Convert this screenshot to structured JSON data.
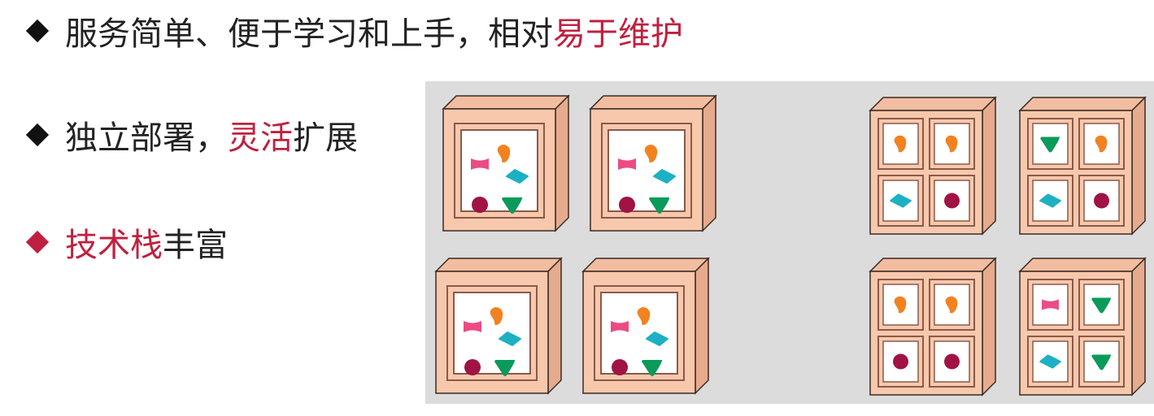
{
  "bullets": [
    {
      "normal": "服务简单、便于学习和上手，相对",
      "highlight": "易于维护",
      "after": "",
      "marker_color": "#111111"
    },
    {
      "normal": "独立部署，",
      "highlight": "灵活",
      "after": "扩展",
      "marker_color": "#111111"
    },
    {
      "normal": "",
      "highlight": "技术栈",
      "after": "丰富",
      "marker_color": "#c0203f"
    }
  ],
  "colors": {
    "highlight": "#c0203f",
    "diagram_background": "#dcdcdc",
    "box_face": "#f8c8ad",
    "box_side": "#e6ab8d",
    "box_top": "#f2bda0",
    "box_outline": "#3a2a22",
    "window": "#ffffff",
    "shape_pink": "#ec4b85",
    "shape_orange": "#f2821f",
    "shape_teal": "#1db0c3",
    "shape_maroon": "#a01344",
    "shape_green": "#0a9a5a"
  },
  "diagram": {
    "left_group": {
      "box_count": 4,
      "style": "single-window",
      "shapes_per_box": [
        "pink-bow",
        "orange-drop",
        "teal-diamond",
        "maroon-circle",
        "green-triangle"
      ]
    },
    "right_group": {
      "box_count": 4,
      "style": "quad-window",
      "boxes": [
        [
          "orange-drop",
          "orange-drop",
          "teal-diamond",
          "maroon-circle"
        ],
        [
          "green-triangle",
          "orange-drop",
          "teal-diamond",
          "maroon-circle"
        ],
        [
          "orange-drop",
          "orange-drop",
          "maroon-circle",
          "maroon-circle"
        ],
        [
          "pink-bow",
          "green-triangle",
          "teal-diamond",
          "green-triangle"
        ]
      ]
    }
  }
}
